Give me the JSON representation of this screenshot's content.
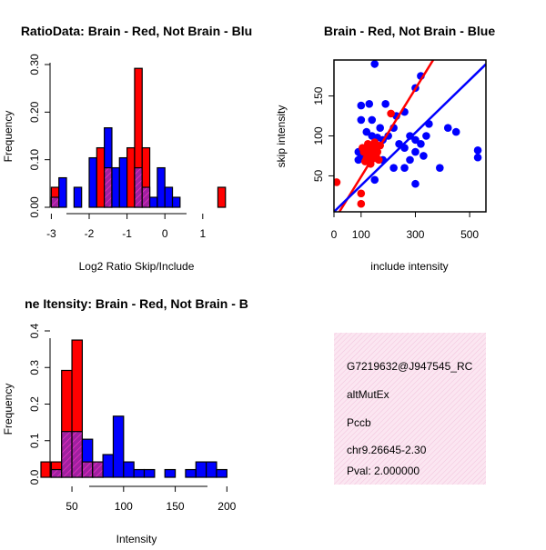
{
  "chart_data": [
    {
      "type": "bar",
      "title": "RatioData: Brain - Red, Not Brain - Blu",
      "xlabel": "Log2 Ratio Skip/Include",
      "ylabel": "Frequency",
      "xlim": [
        -3.25,
        1.75
      ],
      "ylim": [
        0,
        0.3
      ],
      "xticks": [
        "-3",
        "-2",
        "-1",
        "0",
        "1"
      ],
      "yticks": [
        "0.00",
        "0.10",
        "0.20",
        "0.30"
      ],
      "bin_width": 0.2,
      "series": [
        {
          "name": "Brain",
          "color": "#ff0000",
          "bins": [
            [
              -3.0,
              0.042
            ],
            [
              -1.8,
              0.125
            ],
            [
              -1.6,
              0.083
            ],
            [
              -1.0,
              0.125
            ],
            [
              -0.8,
              0.292
            ],
            [
              -0.6,
              0.125
            ],
            [
              1.4,
              0.042
            ]
          ]
        },
        {
          "name": "Not Brain",
          "color": "#0000ff",
          "bins": [
            [
              -3.0,
              0.021
            ],
            [
              -2.8,
              0.062
            ],
            [
              -2.4,
              0.042
            ],
            [
              -2.0,
              0.104
            ],
            [
              -1.6,
              0.167
            ],
            [
              -1.4,
              0.083
            ],
            [
              -1.2,
              0.104
            ],
            [
              -0.8,
              0.083
            ],
            [
              -0.6,
              0.042
            ],
            [
              -0.4,
              0.021
            ],
            [
              -0.2,
              0.083
            ],
            [
              0.0,
              0.042
            ],
            [
              0.2,
              0.021
            ]
          ]
        }
      ]
    },
    {
      "type": "scatter",
      "title": "Brain - Red, Not Brain - Blue",
      "xlabel": "include intensity",
      "ylabel": "skip intensity",
      "xlim": [
        0,
        560
      ],
      "ylim": [
        5,
        195
      ],
      "xticks": [
        0,
        100,
        300,
        500
      ],
      "yticks": [
        50,
        100,
        150
      ],
      "series": [
        {
          "name": "Brain",
          "color": "#ff0000",
          "points": [
            [
              10,
              42
            ],
            [
              100,
              28
            ],
            [
              100,
              15
            ],
            [
              210,
              128
            ],
            [
              120,
              85
            ],
            [
              125,
              80
            ],
            [
              130,
              75
            ],
            [
              140,
              78
            ],
            [
              135,
              70
            ],
            [
              150,
              72
            ],
            [
              110,
              80
            ],
            [
              115,
              68
            ],
            [
              145,
              85
            ],
            [
              160,
              80
            ],
            [
              105,
              85
            ],
            [
              125,
              90
            ],
            [
              170,
              88
            ],
            [
              135,
              65
            ],
            [
              150,
              92
            ],
            [
              140,
              82
            ],
            [
              130,
              88
            ],
            [
              120,
              72
            ],
            [
              155,
              75
            ],
            [
              165,
              70
            ]
          ],
          "fit": {
            "slope": 0.55,
            "intercept": -6
          }
        },
        {
          "name": "Not Brain",
          "color": "#0000ff",
          "points": [
            [
              150,
              190
            ],
            [
              300,
              160
            ],
            [
              320,
              175
            ],
            [
              100,
              138
            ],
            [
              130,
              140
            ],
            [
              190,
              140
            ],
            [
              230,
              125
            ],
            [
              260,
              130
            ],
            [
              350,
              115
            ],
            [
              220,
              110
            ],
            [
              100,
              120
            ],
            [
              120,
              105
            ],
            [
              140,
              100
            ],
            [
              160,
              98
            ],
            [
              180,
              95
            ],
            [
              200,
              100
            ],
            [
              240,
              90
            ],
            [
              260,
              85
            ],
            [
              280,
              100
            ],
            [
              300,
              95
            ],
            [
              320,
              90
            ],
            [
              300,
              80
            ],
            [
              340,
              100
            ],
            [
              330,
              75
            ],
            [
              280,
              70
            ],
            [
              260,
              60
            ],
            [
              220,
              60
            ],
            [
              150,
              45
            ],
            [
              180,
              70
            ],
            [
              100,
              75
            ],
            [
              90,
              70
            ],
            [
              140,
              120
            ],
            [
              420,
              110
            ],
            [
              450,
              105
            ],
            [
              530,
              82
            ],
            [
              530,
              73
            ],
            [
              390,
              60
            ],
            [
              300,
              40
            ],
            [
              90,
              80
            ],
            [
              170,
              110
            ]
          ],
          "fit": {
            "slope": 0.33,
            "intercept": 5
          }
        }
      ]
    },
    {
      "type": "bar",
      "title": "ne Itensity: Brain - Red, Not Brain - B",
      "xlabel": "Intensity",
      "ylabel": "Frequency",
      "xlim": [
        20,
        205
      ],
      "ylim": [
        0,
        0.4
      ],
      "xticks": [
        "50",
        "100",
        "150",
        "200"
      ],
      "yticks": [
        "0.0",
        "0.1",
        "0.2",
        "0.3",
        "0.4"
      ],
      "bin_width": 10,
      "series": [
        {
          "name": "Brain",
          "color": "#ff0000",
          "bins": [
            [
              20,
              0.042
            ],
            [
              30,
              0.042
            ],
            [
              40,
              0.292
            ],
            [
              50,
              0.375
            ],
            [
              60,
              0.042
            ],
            [
              70,
              0.042
            ]
          ]
        },
        {
          "name": "Not Brain",
          "color": "#0000ff",
          "bins": [
            [
              30,
              0.021
            ],
            [
              40,
              0.125
            ],
            [
              50,
              0.125
            ],
            [
              60,
              0.104
            ],
            [
              70,
              0.042
            ],
            [
              80,
              0.062
            ],
            [
              90,
              0.167
            ],
            [
              100,
              0.042
            ],
            [
              110,
              0.021
            ],
            [
              120,
              0.021
            ],
            [
              140,
              0.021
            ],
            [
              160,
              0.021
            ],
            [
              170,
              0.042
            ],
            [
              180,
              0.042
            ],
            [
              190,
              0.021
            ]
          ]
        }
      ]
    }
  ],
  "info_panel": {
    "lines": [
      "G7219632@J947545_RC",
      "altMutEx",
      "Pccb",
      "chr9.26645-2.30"
    ],
    "pval": "Pval: 2.000000",
    "pval_color": "#8b0000",
    "background_color": "#f8d4e8"
  },
  "colors": {
    "red": "#ff0000",
    "blue": "#0000ff",
    "overlap": "#a020a0"
  }
}
